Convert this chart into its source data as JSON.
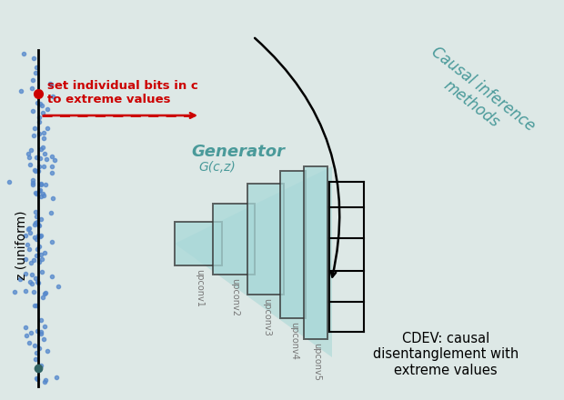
{
  "bg_color": "#dde8e8",
  "panel_color": "#d8e4e4",
  "teal_color": "#8ecece",
  "teal_fill": "#a8d8d8",
  "teal_text": "#4a9a9a",
  "dark_color": "#333333",
  "red_color": "#cc0000",
  "blue_dot_color": "#5588cc",
  "generator_label": "Generator",
  "generator_sublabel": "G(c,z)",
  "upconv_labels": [
    "upconv1",
    "upconv2",
    "upconv3",
    "upconv4",
    "upconv5"
  ],
  "z_label": "z (uniform)",
  "set_bits_label": "set individual bits in c\nto extreme values",
  "causal_label": "Causal inference\nmethods",
  "cdev_label": "CDEV: causal\ndisentanglement with\nextreme values",
  "fig_w": 6.2,
  "fig_h": 4.4,
  "dpi": 100
}
